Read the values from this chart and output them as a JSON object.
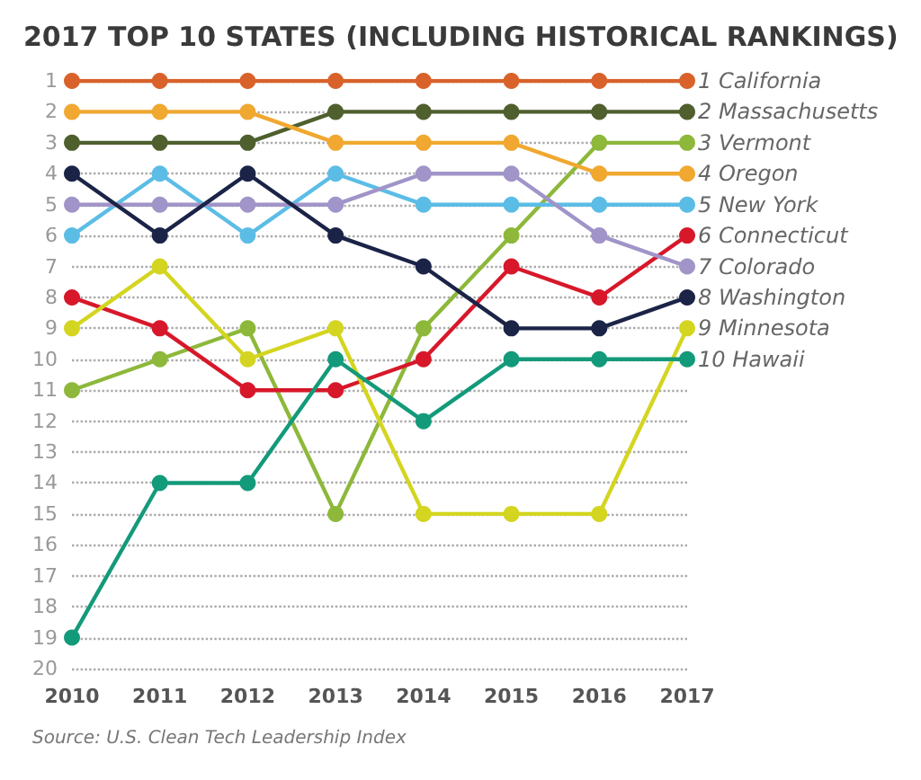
{
  "chart_data": {
    "type": "line",
    "title": "2017 TOP 10 STATES (INCLUDING HISTORICAL RANKINGS)",
    "categories": [
      "2010",
      "2011",
      "2012",
      "2013",
      "2014",
      "2015",
      "2016",
      "2017"
    ],
    "series": [
      {
        "name": "1 California",
        "color": "#d9622b",
        "values": [
          1,
          1,
          1,
          1,
          1,
          1,
          1,
          1
        ]
      },
      {
        "name": "2 Massachusetts",
        "color": "#4f5f2e",
        "values": [
          3,
          3,
          3,
          2,
          2,
          2,
          2,
          2
        ]
      },
      {
        "name": "3 Vermont",
        "color": "#8db83a",
        "values": [
          11,
          10,
          9,
          15,
          9,
          6,
          3,
          3
        ]
      },
      {
        "name": "4 Oregon",
        "color": "#f0a830",
        "values": [
          2,
          2,
          2,
          3,
          3,
          3,
          4,
          4
        ]
      },
      {
        "name": "5 New York",
        "color": "#5bbde6",
        "values": [
          6,
          4,
          6,
          4,
          5,
          5,
          5,
          5
        ]
      },
      {
        "name": "6 Connecticut",
        "color": "#d7182a",
        "values": [
          8,
          9,
          11,
          11,
          10,
          7,
          8,
          6
        ]
      },
      {
        "name": "7 Colorado",
        "color": "#a094c8",
        "values": [
          5,
          5,
          5,
          5,
          4,
          4,
          6,
          7
        ]
      },
      {
        "name": "8 Washington",
        "color": "#1b2447",
        "values": [
          4,
          6,
          4,
          6,
          7,
          9,
          9,
          8
        ]
      },
      {
        "name": "9 Minnesota",
        "color": "#d4d520",
        "values": [
          9,
          7,
          10,
          9,
          15,
          15,
          15,
          9
        ]
      },
      {
        "name": "10 Hawaii",
        "color": "#139a7a",
        "values": [
          19,
          14,
          14,
          10,
          12,
          10,
          10,
          10
        ]
      }
    ],
    "ylim": [
      20,
      1
    ],
    "yticks": [
      1,
      2,
      3,
      4,
      5,
      6,
      7,
      8,
      9,
      10,
      11,
      12,
      13,
      14,
      15,
      16,
      17,
      18,
      19,
      20
    ],
    "grid": "y",
    "marker": "circle",
    "line_style": "solid",
    "legend": false,
    "annotations": [
      "Source: U.S. Clean Tech Leadership Index"
    ]
  }
}
